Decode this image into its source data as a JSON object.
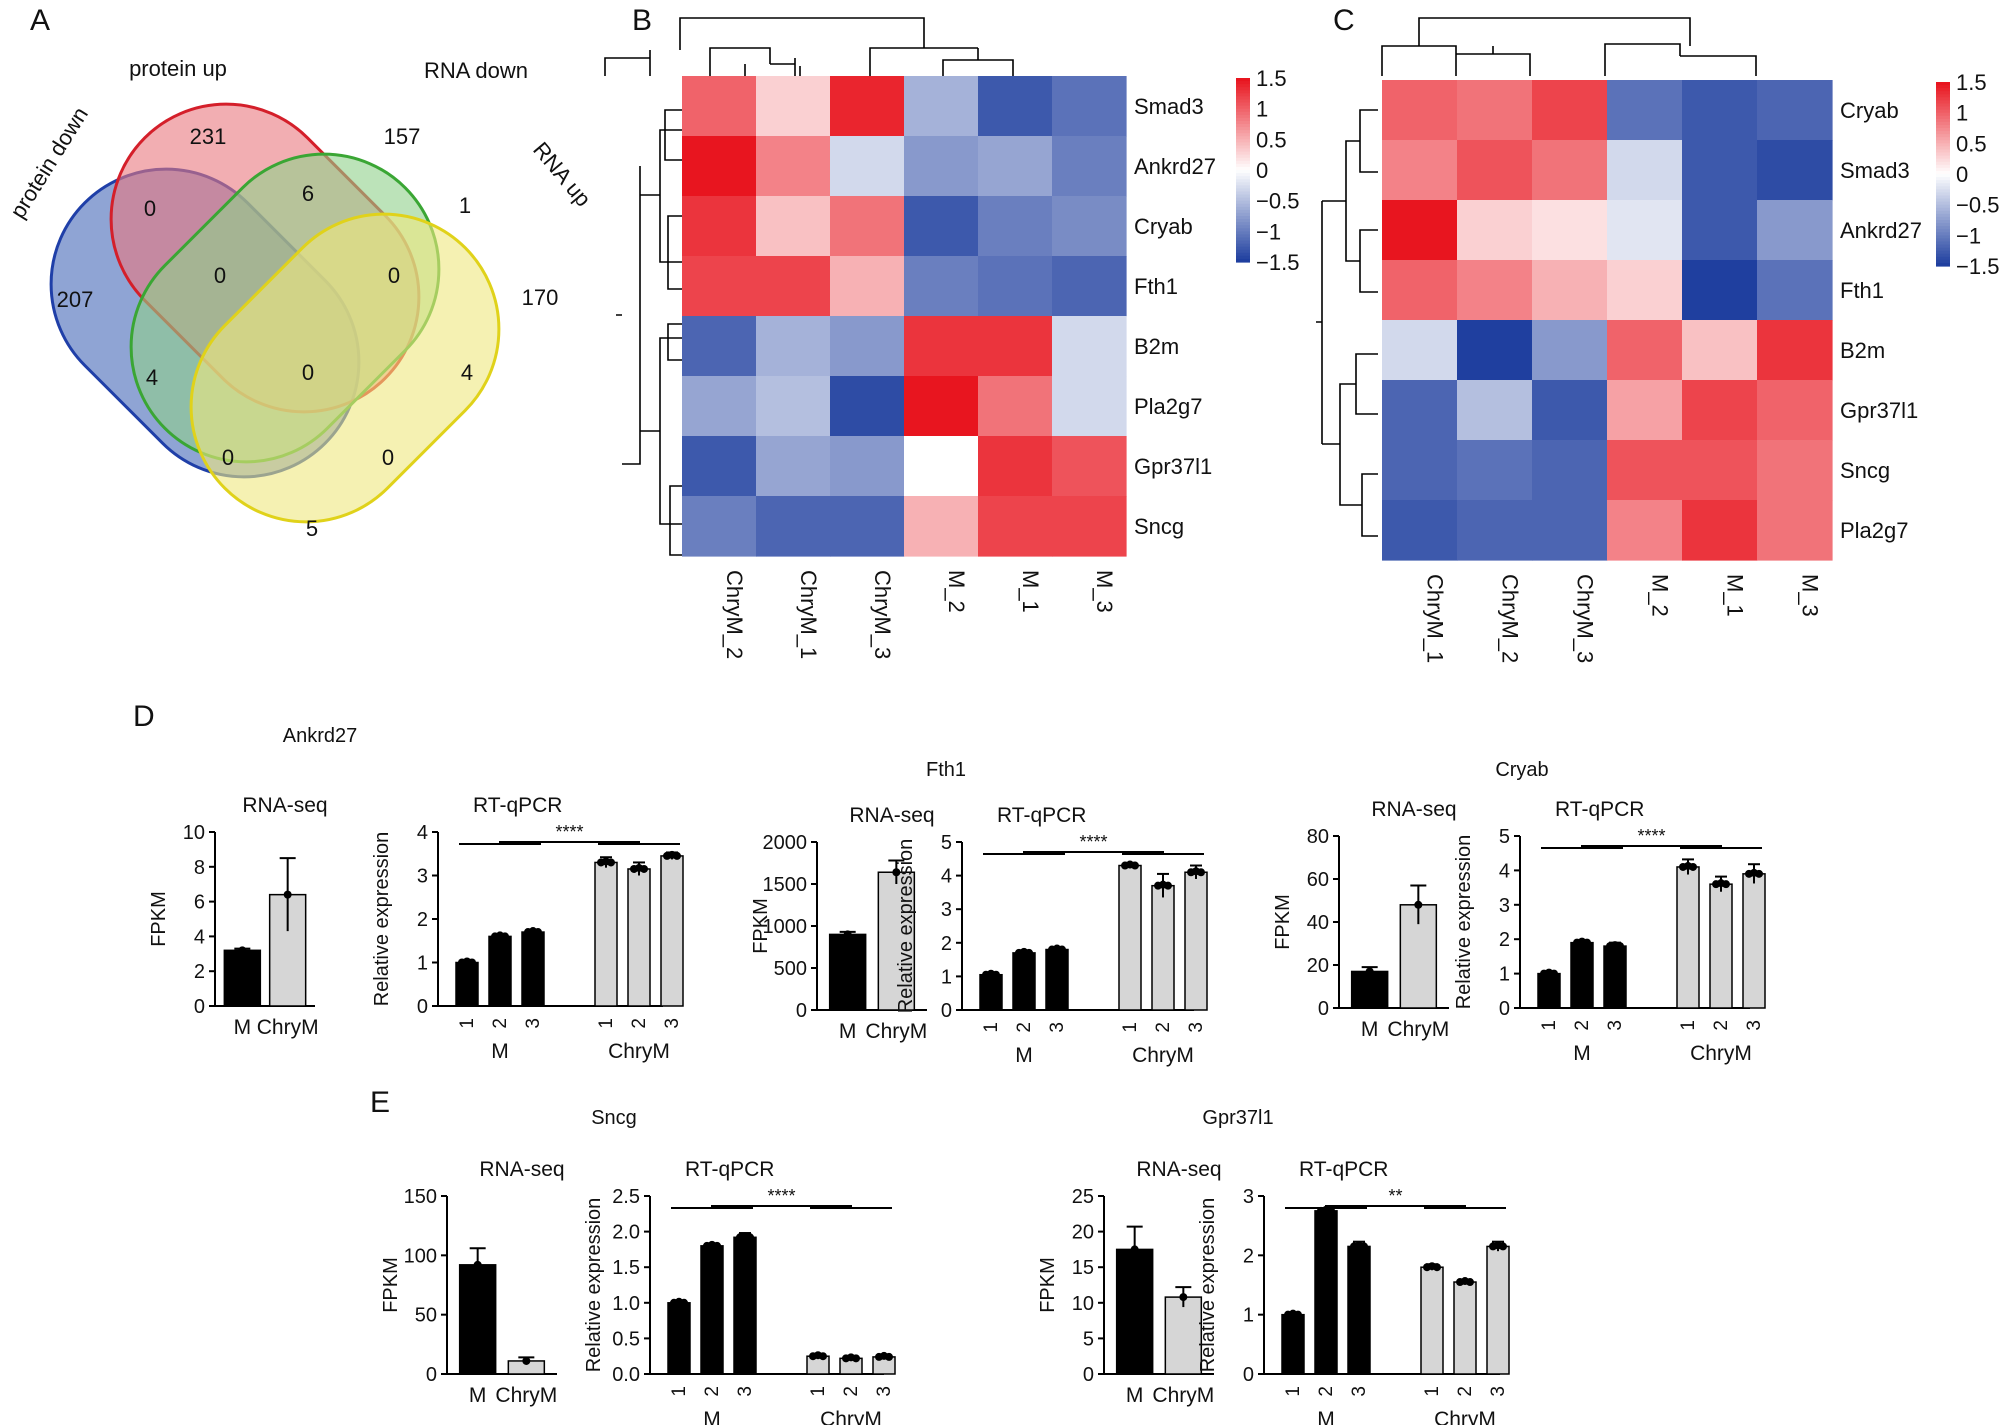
{
  "panels": {
    "A": "A",
    "B": "B",
    "C": "C",
    "D": "D",
    "E": "E"
  },
  "chart_data": [
    {
      "id": "venn",
      "type": "venn",
      "sets": [
        "protein down",
        "protein up",
        "RNA down",
        "RNA up"
      ],
      "counts": {
        "pd_only": "207",
        "pu_only": "231",
        "rd_only": "157",
        "ru_only": "170",
        "pd_pu": "0",
        "pu_rd": "6",
        "rd_ru": "1",
        "pd_rd": "4",
        "pu_ru": "4",
        "pd_ru": "5",
        "pd_pu_rd": "0",
        "pu_rd_ru": "0",
        "pd_rd_ru": "0",
        "pd_pu_ru": "0",
        "all": "0"
      },
      "colors": {
        "pd": "#6a86c6",
        "pu": "#e9787e",
        "rd": "#8fd08a",
        "ru": "#efe77e"
      }
    },
    {
      "id": "heatB",
      "type": "heatmap",
      "rows": [
        "Smad3",
        "Ankrd27",
        "Cryab",
        "Fth1",
        "B2m",
        "Pla2g7",
        "Gpr37l1",
        "Sncg"
      ],
      "columns": [
        "ChryM_2",
        "ChryM_1",
        "ChryM_3",
        "M_2",
        "M_1",
        "M_3"
      ],
      "values": [
        [
          1.0,
          0.3,
          1.4,
          -0.6,
          -1.3,
          -1.1
        ],
        [
          1.5,
          0.8,
          -0.3,
          -0.8,
          -0.7,
          -1.0
        ],
        [
          1.3,
          0.4,
          0.9,
          -1.3,
          -1.0,
          -0.9
        ],
        [
          1.2,
          1.2,
          0.5,
          -1.0,
          -1.1,
          -1.2
        ],
        [
          -1.2,
          -0.6,
          -0.8,
          1.3,
          1.3,
          -0.3
        ],
        [
          -0.7,
          -0.5,
          -1.4,
          1.5,
          0.9,
          -0.3
        ],
        [
          -1.3,
          -0.7,
          -0.8,
          0.0,
          1.3,
          1.1
        ],
        [
          -1.0,
          -1.2,
          -1.2,
          0.5,
          1.2,
          1.2
        ]
      ],
      "colorbar": {
        "ticks": [
          "1.5",
          "1",
          "0.5",
          "0",
          "−0.5",
          "−1",
          "−1.5"
        ],
        "min": -1.5,
        "max": 1.5
      },
      "colors": {
        "low": "#1f3f9f",
        "mid": "#ffffff",
        "high": "#e8151f"
      }
    },
    {
      "id": "heatC",
      "type": "heatmap",
      "rows": [
        "Cryab",
        "Smad3",
        "Ankrd27",
        "Fth1",
        "B2m",
        "Gpr37l1",
        "Sncg",
        "Pla2g7"
      ],
      "columns": [
        "ChryM_1",
        "ChryM_2",
        "ChryM_3",
        "M_2",
        "M_1",
        "M_3"
      ],
      "values": [
        [
          1.0,
          0.9,
          1.2,
          -1.1,
          -1.3,
          -1.2
        ],
        [
          0.8,
          1.1,
          0.9,
          -0.3,
          -1.3,
          -1.4
        ],
        [
          1.5,
          0.3,
          0.2,
          -0.2,
          -1.3,
          -0.8
        ],
        [
          1.0,
          0.8,
          0.5,
          0.3,
          -1.5,
          -1.1
        ],
        [
          -0.3,
          -1.5,
          -0.8,
          1.0,
          0.4,
          1.3
        ],
        [
          -1.2,
          -0.5,
          -1.3,
          0.6,
          1.2,
          1.0
        ],
        [
          -1.2,
          -1.1,
          -1.2,
          1.1,
          1.1,
          0.9
        ],
        [
          -1.3,
          -1.2,
          -1.2,
          0.8,
          1.3,
          0.9
        ]
      ],
      "colorbar": {
        "ticks": [
          "1.5",
          "1",
          "0.5",
          "0",
          "−0.5",
          "−1",
          "−1.5"
        ],
        "min": -1.5,
        "max": 1.5
      },
      "colors": {
        "low": "#1f3f9f",
        "mid": "#ffffff",
        "high": "#e8151f"
      }
    },
    {
      "id": "geneAnkrd27",
      "type": "bar",
      "gene": "Ankrd27",
      "rnaseq": {
        "title": "RNA-seq",
        "ylabel": "FPKM",
        "categories": [
          "M",
          "ChryM"
        ],
        "values": [
          3.2,
          6.4
        ],
        "err": [
          0.1,
          2.1
        ],
        "ylim": [
          0,
          10
        ],
        "ticks": [
          "0",
          "2",
          "4",
          "6",
          "8",
          "10"
        ]
      },
      "qpcr": {
        "title": "RT-qPCR",
        "ylabel": "Relative expression",
        "groups": [
          "M",
          "ChryM"
        ],
        "reps": [
          "1",
          "2",
          "3"
        ],
        "values": [
          1.0,
          1.6,
          1.7,
          3.3,
          3.15,
          3.45
        ],
        "err": [
          0.03,
          0.04,
          0.05,
          0.12,
          0.15,
          0.08
        ],
        "ylim": [
          0,
          4
        ],
        "ticks": [
          "0",
          "1",
          "2",
          "3",
          "4"
        ],
        "sig": "****"
      }
    },
    {
      "id": "geneFth1",
      "type": "bar",
      "gene": "Fth1",
      "rnaseq": {
        "title": "RNA-seq",
        "ylabel": "FPKM",
        "categories": [
          "M",
          "ChryM"
        ],
        "values": [
          900,
          1640
        ],
        "err": [
          30,
          140
        ],
        "ylim": [
          0,
          2000
        ],
        "ticks": [
          "0",
          "500",
          "1000",
          "1500",
          "2000"
        ]
      },
      "qpcr": {
        "title": "RT-qPCR",
        "ylabel": "Relative expression",
        "groups": [
          "M",
          "ChryM"
        ],
        "reps": [
          "1",
          "2",
          "3"
        ],
        "values": [
          1.05,
          1.7,
          1.8,
          4.3,
          3.7,
          4.1
        ],
        "err": [
          0.03,
          0.04,
          0.05,
          0.08,
          0.35,
          0.2
        ],
        "ylim": [
          0,
          5
        ],
        "ticks": [
          "0",
          "1",
          "2",
          "3",
          "4",
          "5"
        ],
        "sig": "****"
      }
    },
    {
      "id": "geneCryab",
      "type": "bar",
      "gene": "Cryab",
      "rnaseq": {
        "title": "RNA-seq",
        "ylabel": "FPKM",
        "categories": [
          "M",
          "ChryM"
        ],
        "values": [
          17,
          48
        ],
        "err": [
          2,
          9
        ],
        "ylim": [
          0,
          80
        ],
        "ticks": [
          "0",
          "20",
          "40",
          "60",
          "80"
        ]
      },
      "qpcr": {
        "title": "RT-qPCR",
        "ylabel": "Relative expression",
        "groups": [
          "M",
          "ChryM"
        ],
        "reps": [
          "1",
          "2",
          "3"
        ],
        "values": [
          1.0,
          1.9,
          1.8,
          4.1,
          3.6,
          3.9
        ],
        "err": [
          0.03,
          0.05,
          0.1,
          0.22,
          0.22,
          0.28
        ],
        "ylim": [
          0,
          5
        ],
        "ticks": [
          "0",
          "1",
          "2",
          "3",
          "4",
          "5"
        ],
        "sig": "****"
      }
    },
    {
      "id": "geneSncg",
      "type": "bar",
      "gene": "Sncg",
      "rnaseq": {
        "title": "RNA-seq",
        "ylabel": "FPKM",
        "categories": [
          "M",
          "ChryM"
        ],
        "values": [
          92,
          11
        ],
        "err": [
          14,
          3
        ],
        "ylim": [
          0,
          150
        ],
        "ticks": [
          "0",
          "50",
          "100",
          "150"
        ]
      },
      "qpcr": {
        "title": "RT-qPCR",
        "ylabel": "Relative expression",
        "groups": [
          "M",
          "ChryM"
        ],
        "reps": [
          "1",
          "2",
          "3"
        ],
        "values": [
          1.0,
          1.8,
          1.92,
          0.25,
          0.22,
          0.24
        ],
        "err": [
          0.02,
          0.02,
          0.06,
          0.02,
          0.01,
          0.02
        ],
        "ylim": [
          0,
          2.5
        ],
        "ticks": [
          "0.0",
          "0.5",
          "1.0",
          "1.5",
          "2.0",
          "2.5"
        ],
        "sig": "****"
      }
    },
    {
      "id": "geneGpr37l1",
      "type": "bar",
      "gene": "Gpr37l1",
      "rnaseq": {
        "title": "RNA-seq",
        "ylabel": "FPKM",
        "categories": [
          "M",
          "ChryM"
        ],
        "values": [
          17.5,
          10.8
        ],
        "err": [
          3.2,
          1.4
        ],
        "ylim": [
          0,
          25
        ],
        "ticks": [
          "0",
          "5",
          "10",
          "15",
          "20",
          "25"
        ]
      },
      "qpcr": {
        "title": "RT-qPCR",
        "ylabel": "Relative expression",
        "groups": [
          "M",
          "ChryM"
        ],
        "reps": [
          "1",
          "2",
          "3"
        ],
        "values": [
          1.0,
          2.75,
          2.15,
          1.8,
          1.55,
          2.15
        ],
        "err": [
          0.02,
          0.04,
          0.08,
          0.05,
          0.03,
          0.08
        ],
        "ylim": [
          0,
          3
        ],
        "ticks": [
          "0",
          "1",
          "2",
          "3"
        ],
        "sig": "**"
      }
    }
  ]
}
